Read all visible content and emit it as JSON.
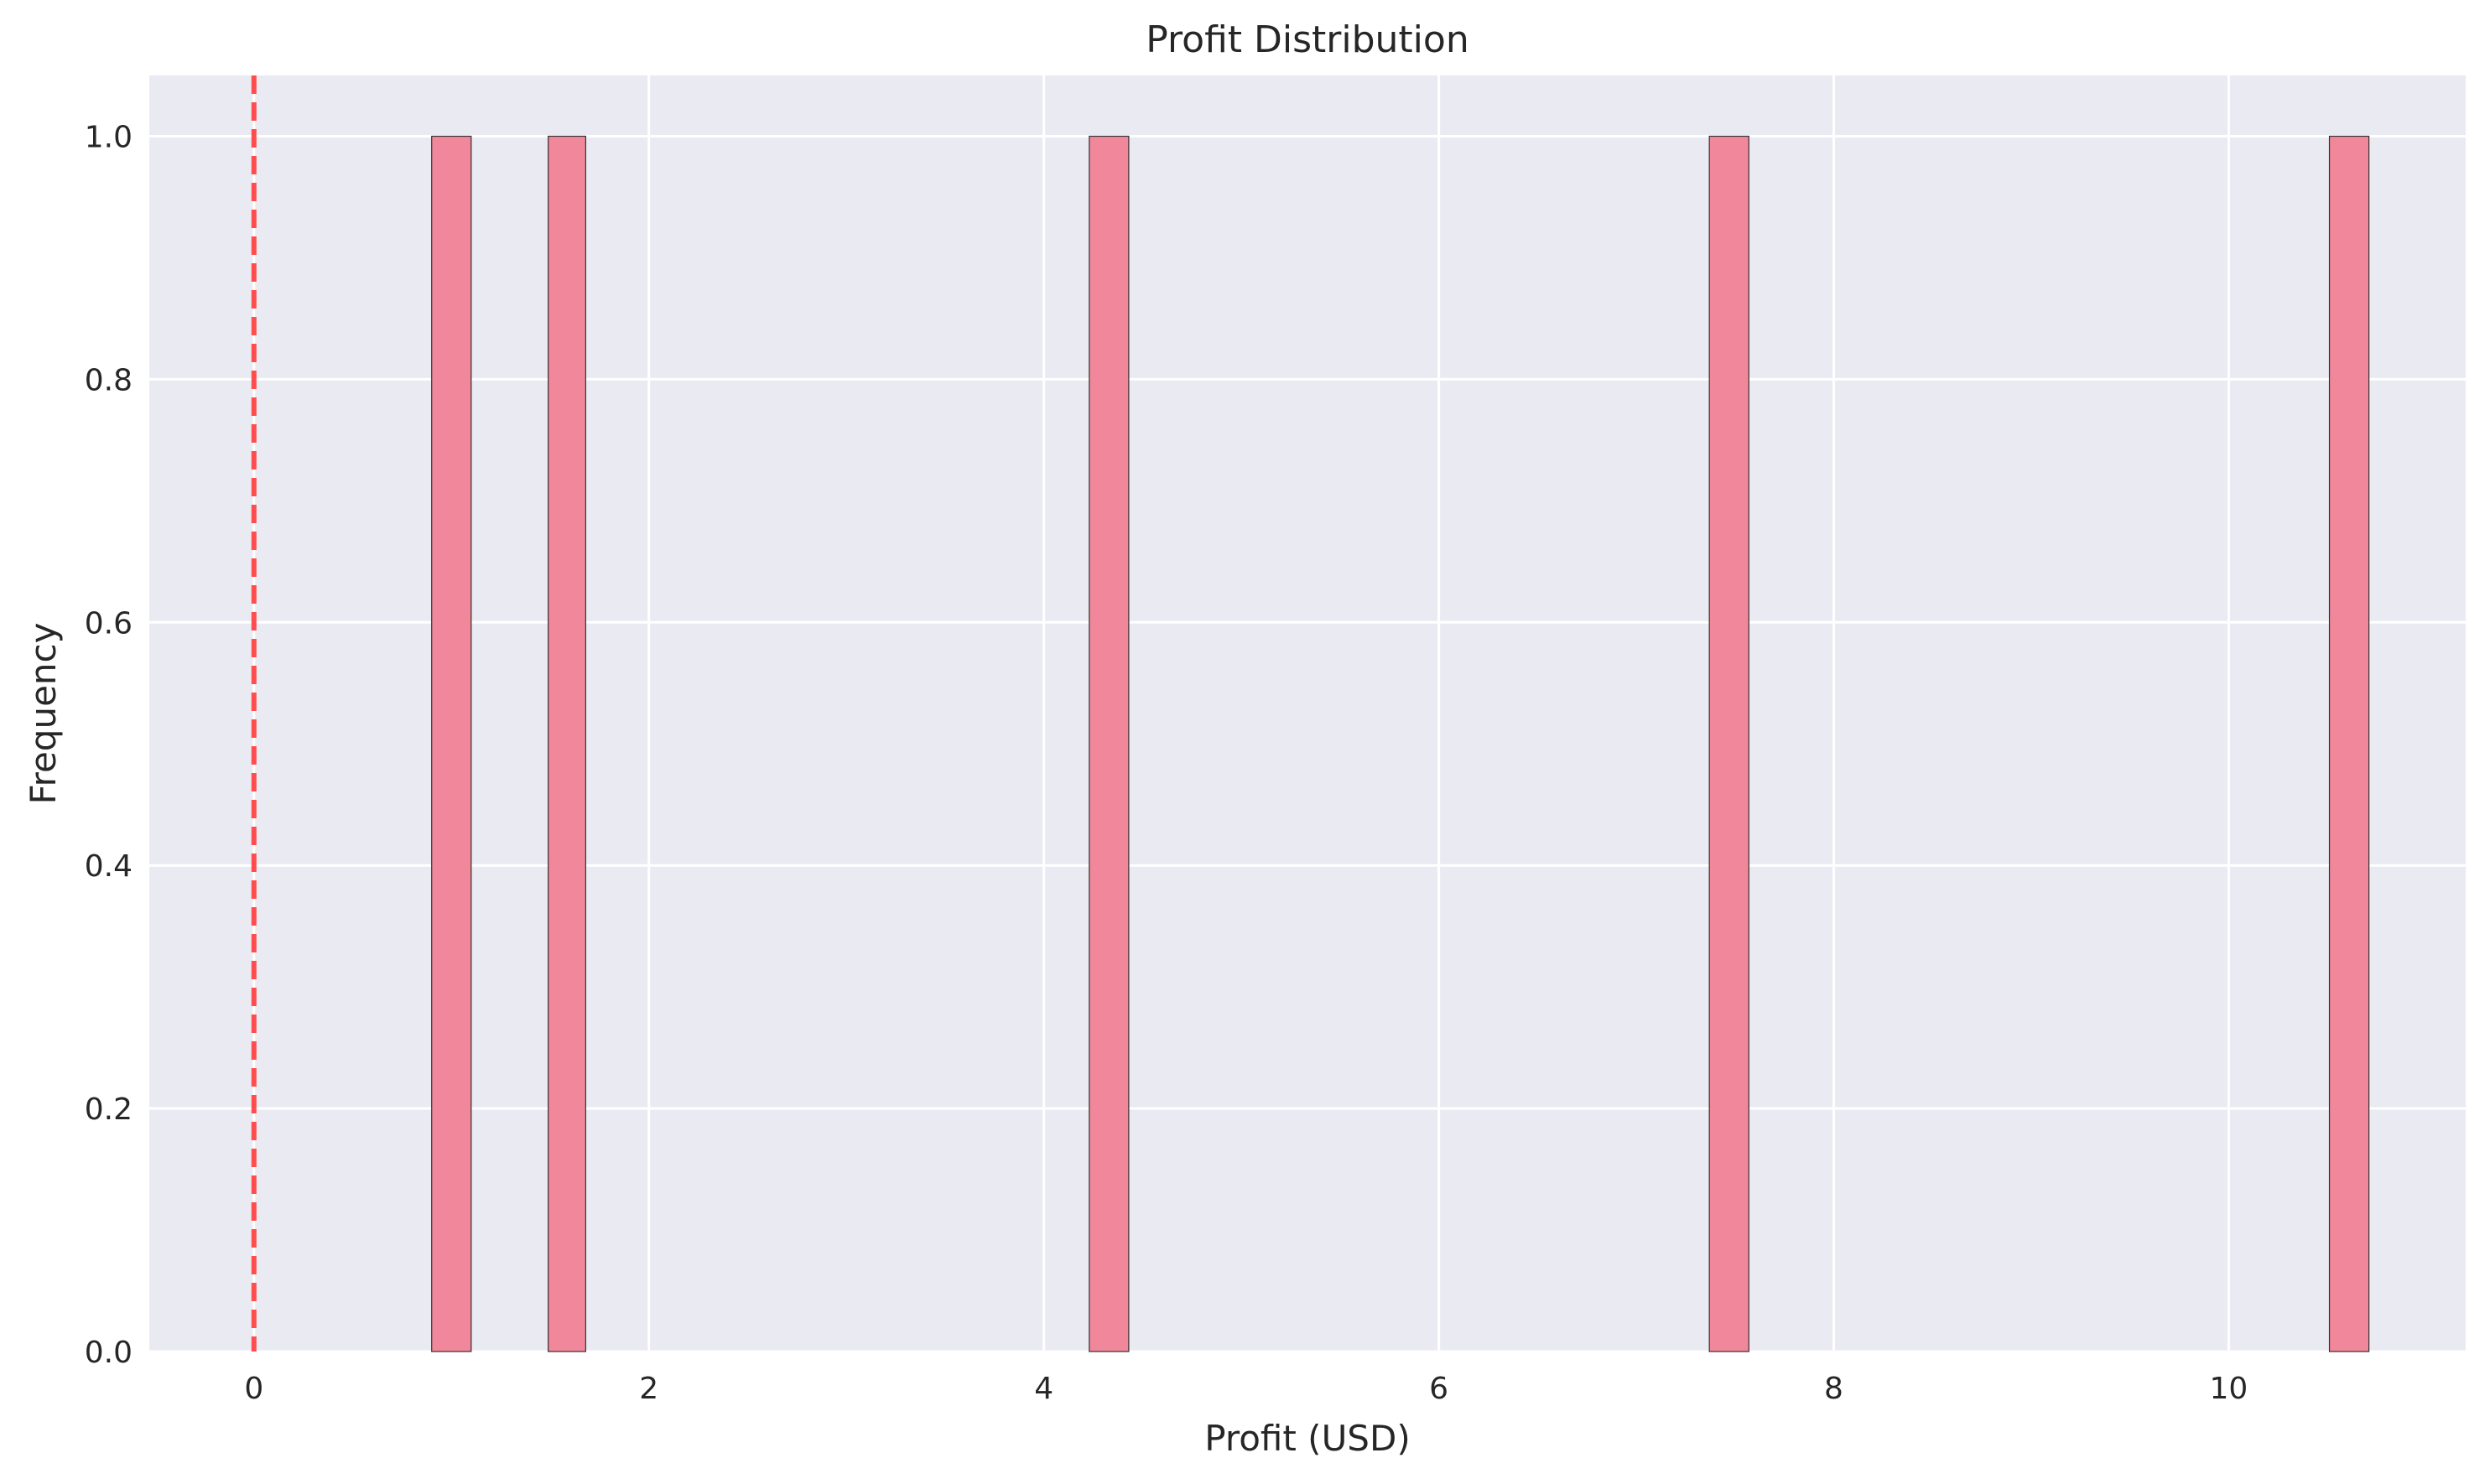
{
  "chart_data": {
    "type": "bar",
    "title": "Profit Distribution",
    "xlabel": "Profit (USD)",
    "ylabel": "Frequency",
    "xlim": [
      -0.53,
      11.2
    ],
    "ylim": [
      0.0,
      1.05
    ],
    "x_ticks": [
      "0",
      "2",
      "4",
      "6",
      "8",
      "10"
    ],
    "x_tick_values": [
      0,
      2,
      4,
      6,
      8,
      10
    ],
    "y_ticks": [
      "0.0",
      "0.2",
      "0.4",
      "0.6",
      "0.8",
      "1.0"
    ],
    "y_tick_values": [
      0.0,
      0.2,
      0.4,
      0.6,
      0.8,
      1.0
    ],
    "bins": [
      {
        "left": 0.9,
        "right": 1.1,
        "count": 1
      },
      {
        "left": 1.49,
        "right": 1.68,
        "count": 1
      },
      {
        "left": 4.23,
        "right": 4.43,
        "count": 1
      },
      {
        "left": 7.37,
        "right": 7.57,
        "count": 1
      },
      {
        "left": 10.51,
        "right": 10.71,
        "count": 1
      }
    ],
    "reference_line": {
      "x": 0,
      "style": "dashed",
      "color": "#ff4d4d"
    },
    "bar_color": "#f0879a",
    "bar_edge_color": "#333333",
    "plot_background": "#eaeaf2",
    "grid": true,
    "grid_color": "#ffffff"
  }
}
